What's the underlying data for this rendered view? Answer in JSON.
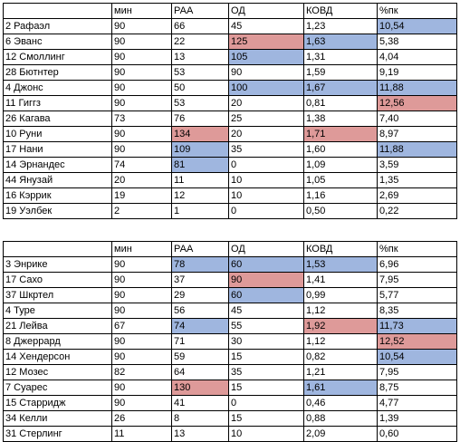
{
  "columns": [
    "",
    "мин",
    "РАА",
    "ОД",
    "КОВД",
    "%пк"
  ],
  "colors": {
    "blue": "#9fb6df",
    "red": "#de9a99"
  },
  "tables": [
    {
      "rows": [
        {
          "cells": [
            "2 Рафаэл",
            "90",
            "66",
            "45",
            "1,23",
            "10,54"
          ],
          "hl": [
            "",
            "",
            "",
            "",
            "",
            "blue"
          ]
        },
        {
          "cells": [
            "6 Эванс",
            "90",
            "22",
            "125",
            "1,63",
            "5,38"
          ],
          "hl": [
            "",
            "",
            "",
            "red",
            "blue",
            ""
          ]
        },
        {
          "cells": [
            "12 Смоллинг",
            "90",
            "13",
            "105",
            "1,31",
            "4,04"
          ],
          "hl": [
            "",
            "",
            "",
            "blue",
            "",
            ""
          ]
        },
        {
          "cells": [
            "28 Бютнтер",
            "90",
            "53",
            "90",
            "1,59",
            "9,19"
          ],
          "hl": [
            "",
            "",
            "",
            "",
            "",
            ""
          ]
        },
        {
          "cells": [
            "4 Джонс",
            "90",
            "50",
            "100",
            "1,67",
            "11,88"
          ],
          "hl": [
            "",
            "",
            "",
            "blue",
            "blue",
            "blue"
          ]
        },
        {
          "cells": [
            "11 Гиггз",
            "90",
            "53",
            "20",
            "0,81",
            "12,56"
          ],
          "hl": [
            "",
            "",
            "",
            "",
            "",
            "red"
          ]
        },
        {
          "cells": [
            "26 Кагава",
            "73",
            "76",
            "25",
            "1,38",
            "7,40"
          ],
          "hl": [
            "",
            "",
            "",
            "",
            "",
            ""
          ]
        },
        {
          "cells": [
            "10 Руни",
            "90",
            "134",
            "20",
            "1,71",
            "8,97"
          ],
          "hl": [
            "",
            "",
            "red",
            "",
            "red",
            ""
          ]
        },
        {
          "cells": [
            "17 Нани",
            "90",
            "109",
            "35",
            "1,60",
            "11,88"
          ],
          "hl": [
            "",
            "",
            "blue",
            "",
            "",
            "blue"
          ]
        },
        {
          "cells": [
            "14 Эрнандес",
            "74",
            "81",
            "0",
            "1,09",
            "3,59"
          ],
          "hl": [
            "",
            "",
            "blue",
            "",
            "",
            ""
          ]
        },
        {
          "cells": [
            "44 Янузай",
            "20",
            "11",
            "10",
            "1,05",
            "1,35"
          ],
          "hl": [
            "",
            "",
            "",
            "",
            "",
            ""
          ]
        },
        {
          "cells": [
            "16 Кэррик",
            "19",
            "12",
            "10",
            "1,16",
            "2,69"
          ],
          "hl": [
            "",
            "",
            "",
            "",
            "",
            ""
          ]
        },
        {
          "cells": [
            "19 Уэлбек",
            "2",
            "1",
            "0",
            "0,50",
            "0,22"
          ],
          "hl": [
            "",
            "",
            "",
            "",
            "",
            ""
          ]
        }
      ]
    },
    {
      "rows": [
        {
          "cells": [
            "3 Энрике",
            "90",
            "78",
            "60",
            "1,53",
            "6,96"
          ],
          "hl": [
            "",
            "",
            "blue",
            "blue",
            "blue",
            ""
          ]
        },
        {
          "cells": [
            "17 Сахо",
            "90",
            "37",
            "90",
            "1,41",
            "7,95"
          ],
          "hl": [
            "",
            "",
            "",
            "red",
            "",
            ""
          ]
        },
        {
          "cells": [
            "37 Шкртел",
            "90",
            "29",
            "60",
            "0,99",
            "5,77"
          ],
          "hl": [
            "",
            "",
            "",
            "blue",
            "",
            ""
          ]
        },
        {
          "cells": [
            "4 Туре",
            "90",
            "56",
            "45",
            "1,12",
            "8,35"
          ],
          "hl": [
            "",
            "",
            "",
            "",
            "",
            ""
          ]
        },
        {
          "cells": [
            "21 Лейва",
            "67",
            "74",
            "55",
            "1,92",
            "11,73"
          ],
          "hl": [
            "",
            "",
            "blue",
            "",
            "red",
            "blue"
          ]
        },
        {
          "cells": [
            "8 Джеррард",
            "90",
            "71",
            "30",
            "1,12",
            "12,52"
          ],
          "hl": [
            "",
            "",
            "",
            "",
            "",
            "red"
          ]
        },
        {
          "cells": [
            "14 Хендерсон",
            "90",
            "59",
            "15",
            "0,82",
            "10,54"
          ],
          "hl": [
            "",
            "",
            "",
            "",
            "",
            "blue"
          ]
        },
        {
          "cells": [
            "12 Мозес",
            "82",
            "64",
            "35",
            "1,21",
            "7,95"
          ],
          "hl": [
            "",
            "",
            "",
            "",
            "",
            ""
          ]
        },
        {
          "cells": [
            "7 Суарес",
            "90",
            "130",
            "15",
            "1,61",
            "8,75"
          ],
          "hl": [
            "",
            "",
            "red",
            "",
            "blue",
            ""
          ]
        },
        {
          "cells": [
            "15 Старридж",
            "90",
            "41",
            "0",
            "0,46",
            "4,77"
          ],
          "hl": [
            "",
            "",
            "",
            "",
            "",
            ""
          ]
        },
        {
          "cells": [
            "34 Келли",
            "26",
            "8",
            "15",
            "0,88",
            "1,39"
          ],
          "hl": [
            "",
            "",
            "",
            "",
            "",
            ""
          ]
        },
        {
          "cells": [
            "31 Стерлинг",
            "11",
            "13",
            "10",
            "2,09",
            "0,60"
          ],
          "hl": [
            "",
            "",
            "",
            "",
            "",
            ""
          ]
        }
      ]
    }
  ]
}
